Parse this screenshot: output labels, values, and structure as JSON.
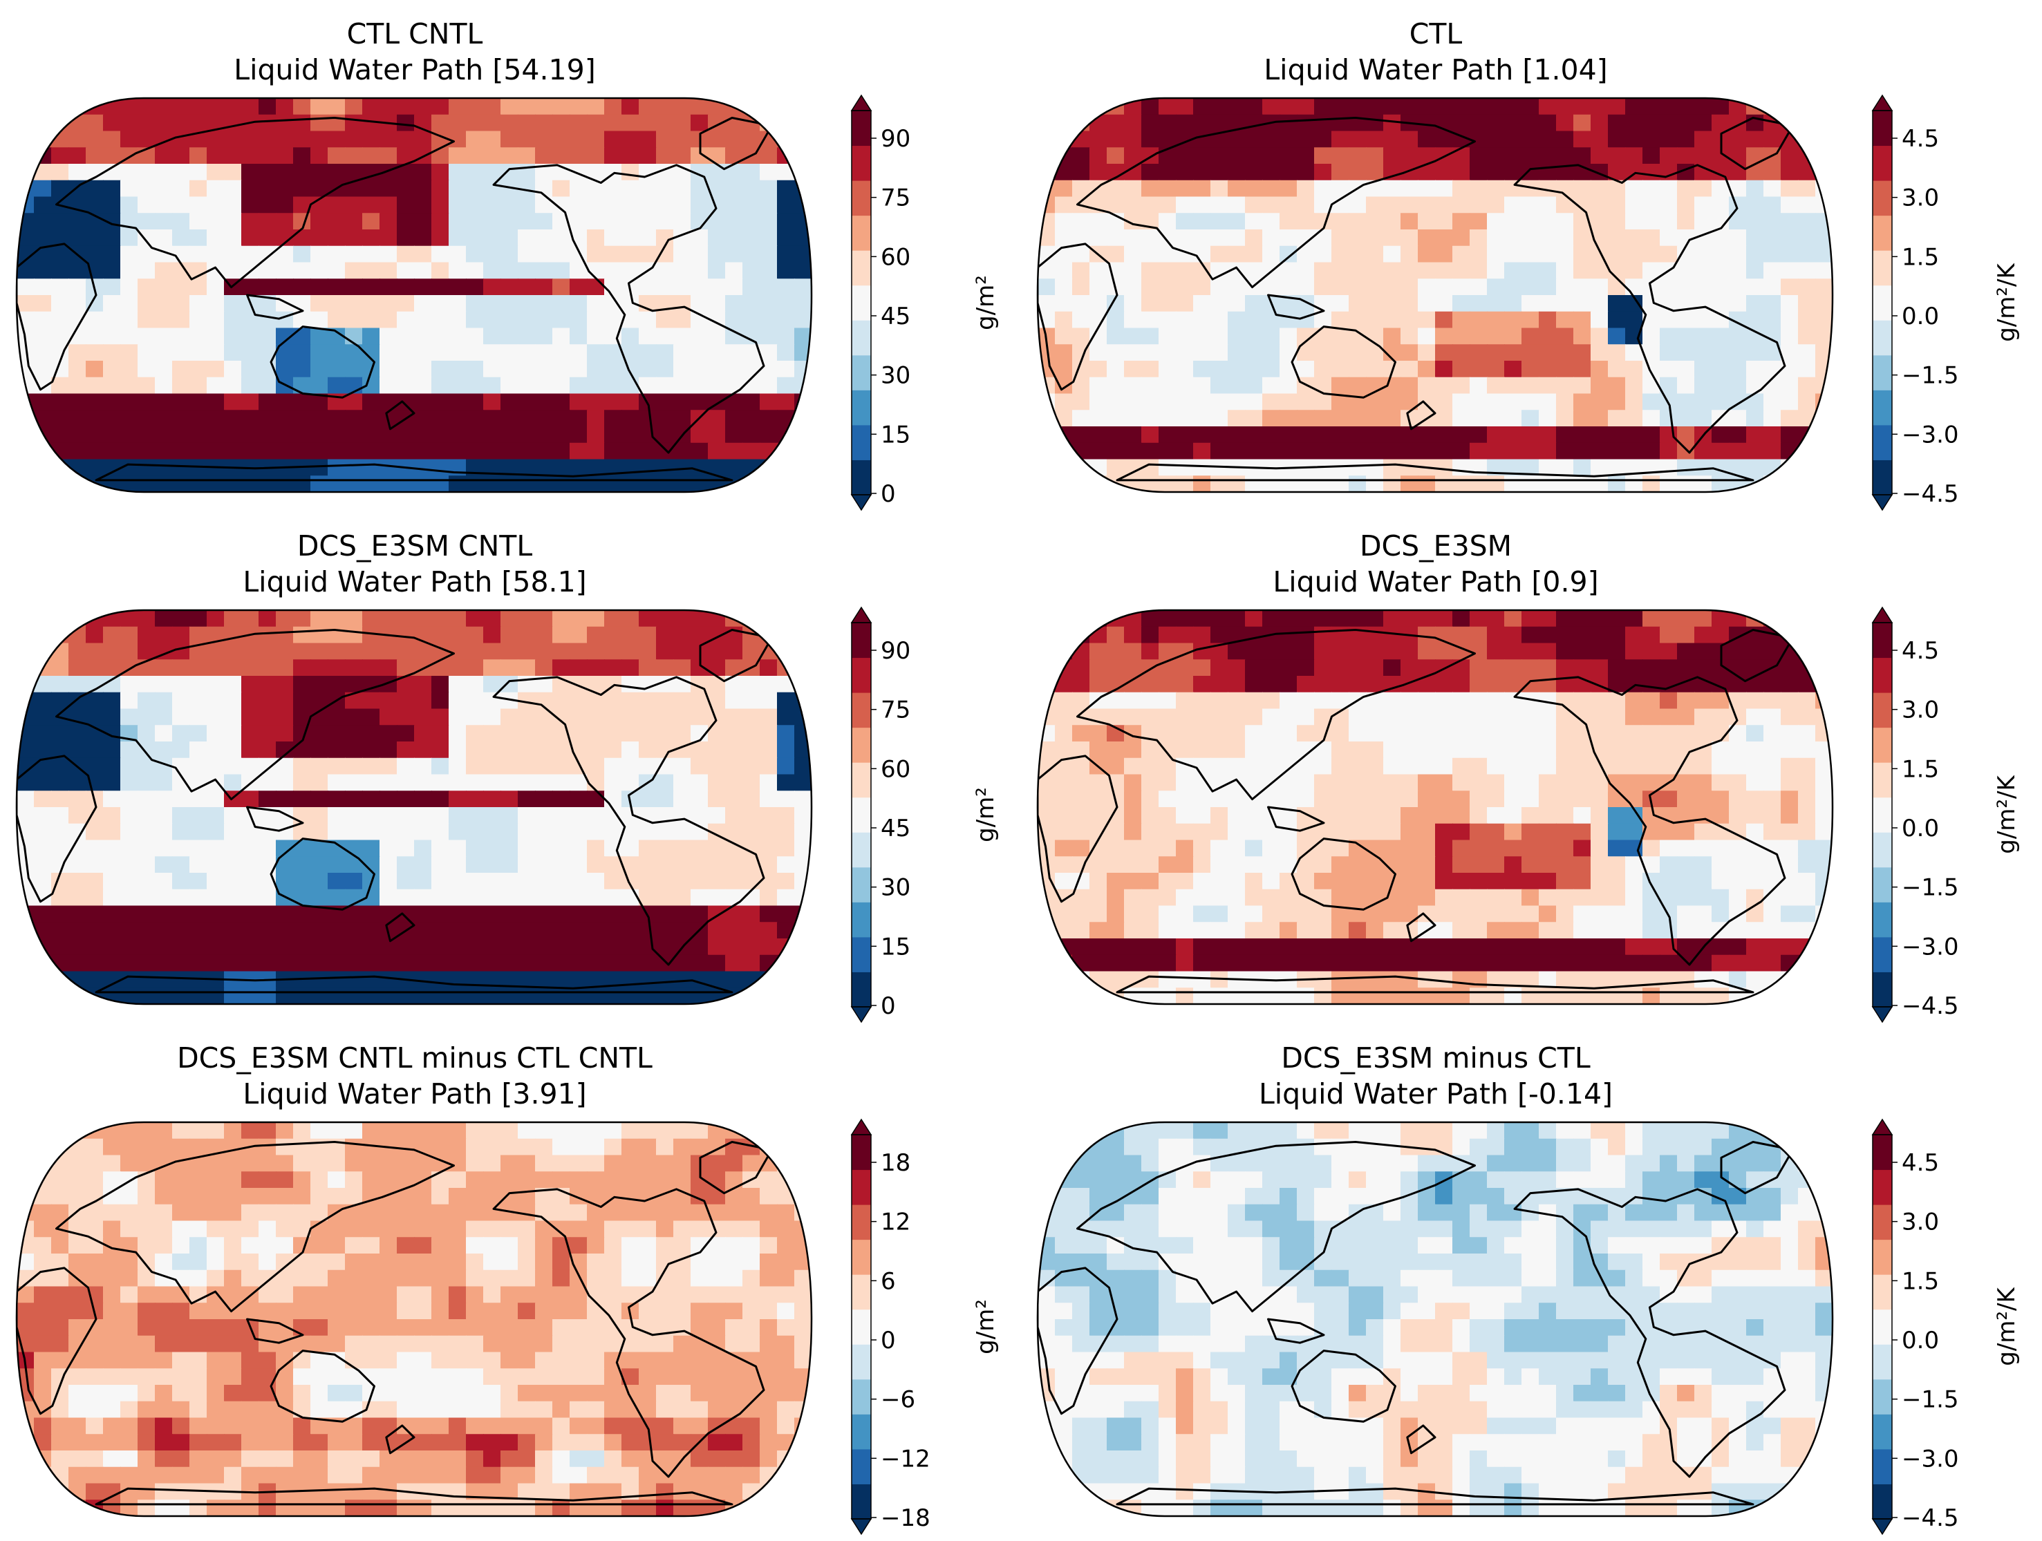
{
  "panels": [
    {
      "title_line1": "CTL CNTL",
      "title_line2": "Liquid Water Path [54.19]",
      "colorbar": {
        "ticks": [
          "90",
          "75",
          "60",
          "45",
          "30",
          "15",
          "0"
        ],
        "unit": "g/m²"
      },
      "field": "mean"
    },
    {
      "title_line1": "CTL",
      "title_line2": "Liquid Water Path [1.04]",
      "colorbar": {
        "ticks": [
          "4.5",
          "3.0",
          "1.5",
          "0.0",
          "−1.5",
          "−3.0",
          "−4.5"
        ],
        "unit": "g/m²/K"
      },
      "field": "sens"
    },
    {
      "title_line1": "DCS_E3SM CNTL",
      "title_line2": "Liquid Water Path [58.1]",
      "colorbar": {
        "ticks": [
          "90",
          "75",
          "60",
          "45",
          "30",
          "15",
          "0"
        ],
        "unit": "g/m²"
      },
      "field": "mean"
    },
    {
      "title_line1": "DCS_E3SM",
      "title_line2": "Liquid Water Path [0.9]",
      "colorbar": {
        "ticks": [
          "4.5",
          "3.0",
          "1.5",
          "0.0",
          "−1.5",
          "−3.0",
          "−4.5"
        ],
        "unit": "g/m²/K"
      },
      "field": "sens"
    },
    {
      "title_line1": "DCS_E3SM CNTL minus CTL CNTL",
      "title_line2": "Liquid Water Path [3.91]",
      "colorbar": {
        "ticks": [
          "18",
          "12",
          "6",
          "0",
          "−6",
          "−12",
          "−18"
        ],
        "unit": "g/m²"
      },
      "field": "diff"
    },
    {
      "title_line1": "DCS_E3SM minus CTL",
      "title_line2": "Liquid Water Path [-0.14]",
      "colorbar": {
        "ticks": [
          "4.5",
          "3.0",
          "1.5",
          "0.0",
          "−1.5",
          "−3.0",
          "−4.5"
        ],
        "unit": "g/m²/K"
      },
      "field": "weak"
    }
  ],
  "colormap": [
    "#053061",
    "#2166ac",
    "#4393c3",
    "#92c5de",
    "#d1e5f0",
    "#f7f7f7",
    "#fddbc7",
    "#f4a582",
    "#d6604d",
    "#b2182b",
    "#67001f"
  ]
}
